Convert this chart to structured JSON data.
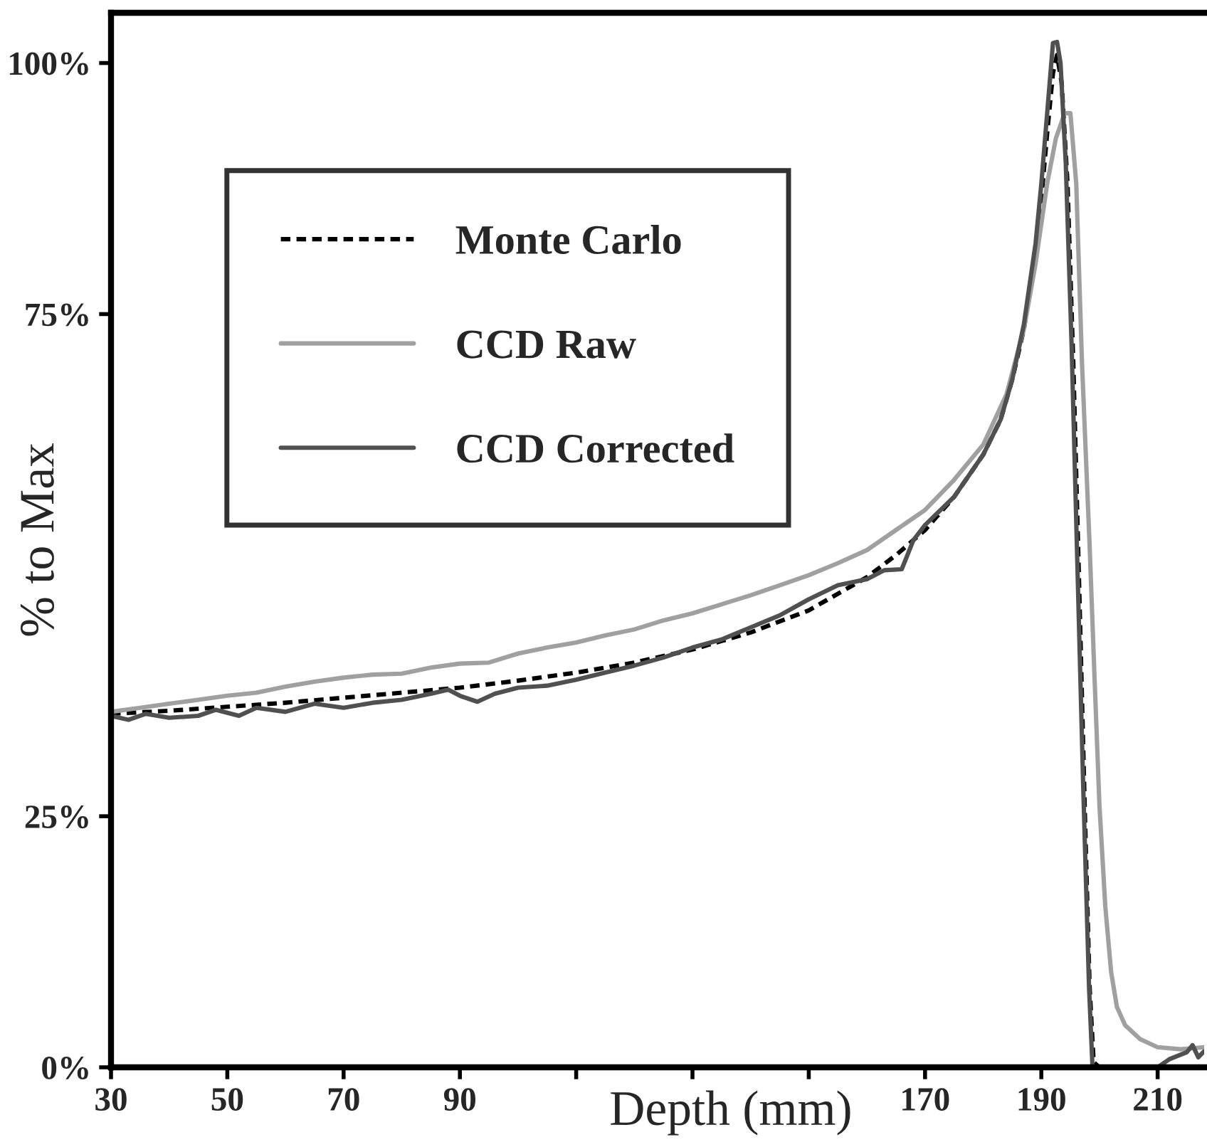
{
  "chart_data": {
    "type": "line",
    "xlabel": "Depth (mm)",
    "ylabel": "% to Max",
    "xlim": [
      30,
      218
    ],
    "ylim": [
      0,
      105
    ],
    "xticks": [
      30,
      50,
      70,
      90,
      {
        "value": 110,
        "label": null
      },
      {
        "value": 130,
        "label": null
      },
      {
        "value": 150,
        "label": null
      },
      170,
      190,
      210
    ],
    "yticks": [
      {
        "value": 0,
        "label": "0%"
      },
      {
        "value": 25,
        "label": "25%"
      },
      {
        "value": 75,
        "label": "75%"
      },
      {
        "value": 100,
        "label": "100%"
      }
    ],
    "grid": false,
    "legend": "top left",
    "marker": "none",
    "series": [
      {
        "name": "Monte Carlo",
        "color": "#000000",
        "line_style": "dashed",
        "x": [
          30,
          40,
          50,
          60,
          70,
          80,
          90,
          100,
          110,
          120,
          130,
          140,
          150,
          160,
          165,
          170,
          175,
          180,
          183,
          185,
          187,
          189,
          190,
          191,
          192,
          192.7,
          193.5,
          194.5,
          195.5,
          196.5,
          197.5,
          198.3,
          199,
          200,
          210,
          218
        ],
        "values": [
          35.2,
          35.5,
          35.9,
          36.3,
          36.8,
          37.3,
          37.8,
          38.5,
          39.3,
          40.3,
          41.6,
          43.3,
          45.5,
          48.8,
          51.0,
          53.5,
          56.8,
          61.0,
          64.5,
          68.5,
          73.5,
          81.0,
          86.5,
          93.0,
          99.0,
          100.8,
          98,
          88,
          70,
          48,
          25,
          8,
          0.5,
          0,
          0,
          0
        ]
      },
      {
        "name": "CCD Raw",
        "color": "#a0a0a0",
        "line_style": "solid",
        "x": [
          30,
          35,
          40,
          45,
          50,
          55,
          60,
          65,
          70,
          75,
          80,
          85,
          90,
          95,
          100,
          105,
          110,
          115,
          120,
          125,
          130,
          135,
          140,
          145,
          150,
          155,
          160,
          165,
          170,
          175,
          180,
          184,
          187,
          189,
          191,
          192.5,
          194,
          195,
          196,
          197,
          198.3,
          199.2,
          200,
          201,
          202,
          203,
          204.4,
          207,
          210,
          214,
          218
        ],
        "values": [
          35.4,
          35.8,
          36.2,
          36.6,
          37.0,
          37.3,
          37.9,
          38.4,
          38.8,
          39.1,
          39.2,
          39.8,
          40.2,
          40.3,
          41.2,
          41.8,
          42.3,
          43.0,
          43.6,
          44.5,
          45.2,
          46.1,
          47.0,
          48.0,
          49.0,
          50.2,
          51.5,
          53.5,
          55.5,
          58.5,
          62.0,
          67.0,
          73.5,
          80.0,
          88.0,
          92.5,
          95.0,
          95.0,
          88.0,
          70.0,
          52.0,
          38,
          26,
          16,
          9.5,
          6.0,
          4.2,
          2.8,
          2.0,
          1.8,
          2.0
        ]
      },
      {
        "name": "CCD Corrected",
        "color": "#505050",
        "line_style": "solid",
        "x": [
          30,
          33,
          36,
          40,
          45,
          48,
          52,
          55,
          60,
          65,
          70,
          75,
          80,
          85,
          88,
          90,
          93,
          96,
          100,
          105,
          110,
          115,
          120,
          125,
          130,
          135,
          140,
          145,
          150,
          155,
          160,
          163,
          166,
          168,
          170,
          175,
          180,
          183,
          185,
          187,
          189,
          190,
          191,
          192,
          192.7,
          193.3,
          194.2,
          195.2,
          196.2,
          197.2,
          198.2,
          198.8,
          205,
          210,
          212,
          215,
          216,
          217,
          218
        ],
        "values": [
          35.0,
          34.6,
          35.2,
          34.8,
          35.0,
          35.6,
          35.0,
          35.8,
          35.4,
          36.2,
          35.8,
          36.3,
          36.6,
          37.2,
          37.6,
          37.0,
          36.4,
          37.2,
          37.8,
          38.0,
          38.6,
          39.3,
          40.0,
          40.8,
          41.8,
          42.6,
          43.8,
          45.0,
          46.6,
          48.0,
          48.6,
          49.5,
          49.6,
          52.5,
          54.0,
          56.8,
          61.0,
          64.5,
          68.5,
          74.0,
          82.0,
          88.0,
          95.0,
          102.0,
          102.1,
          100.0,
          90.0,
          72.0,
          50.0,
          28.0,
          8.0,
          0.0,
          0.0,
          0.0,
          0.8,
          1.5,
          2.2,
          1.0,
          1.6
        ]
      }
    ]
  }
}
